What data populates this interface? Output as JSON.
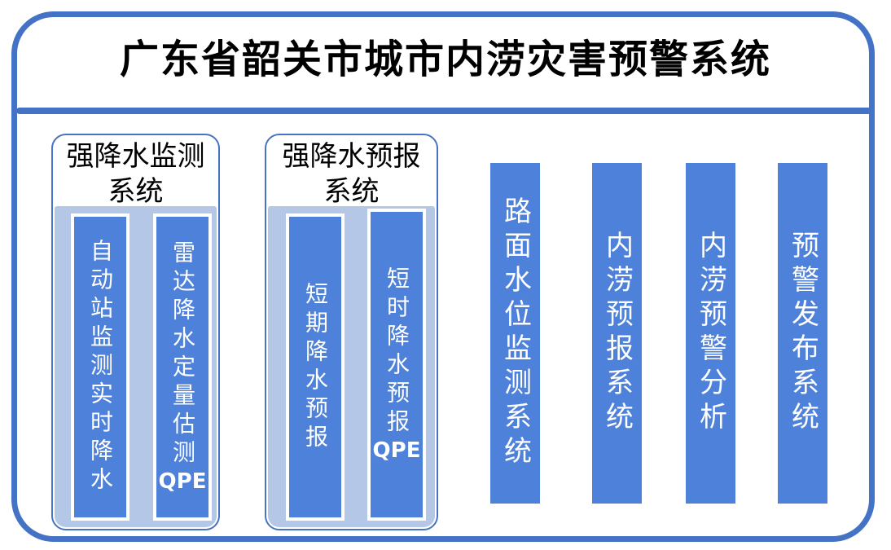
{
  "title": "广东省韶关市城市内涝灾害预警系统",
  "colors": {
    "frame_border": "#4472c4",
    "divider": "#4472c4",
    "bar_fill": "#4e81d9",
    "bar_border": "#ffffff",
    "group_bg": "#b4c7e7",
    "group_border": "#4673c5",
    "bar_text": "#ffffff",
    "title_text": "#000000",
    "header_text": "#000000",
    "canvas_bg": "#ffffff"
  },
  "groups": [
    {
      "header_line1": "强降水监测",
      "header_line2": "系统",
      "bars": [
        {
          "label": "自动站监测实时降水",
          "suffix": ""
        },
        {
          "label": "雷达降水定量估测",
          "suffix": "QPE"
        }
      ]
    },
    {
      "header_line1": "强降水预报",
      "header_line2": "系统",
      "bars": [
        {
          "label": "短期降水预报",
          "suffix": ""
        },
        {
          "label": "短时降水预报",
          "suffix": "QPE"
        }
      ]
    }
  ],
  "pipeline": [
    {
      "label": "路面水位监测系统"
    },
    {
      "label": "内涝预报系统"
    },
    {
      "label": "内涝预警分析"
    },
    {
      "label": "预警发布系统"
    }
  ]
}
